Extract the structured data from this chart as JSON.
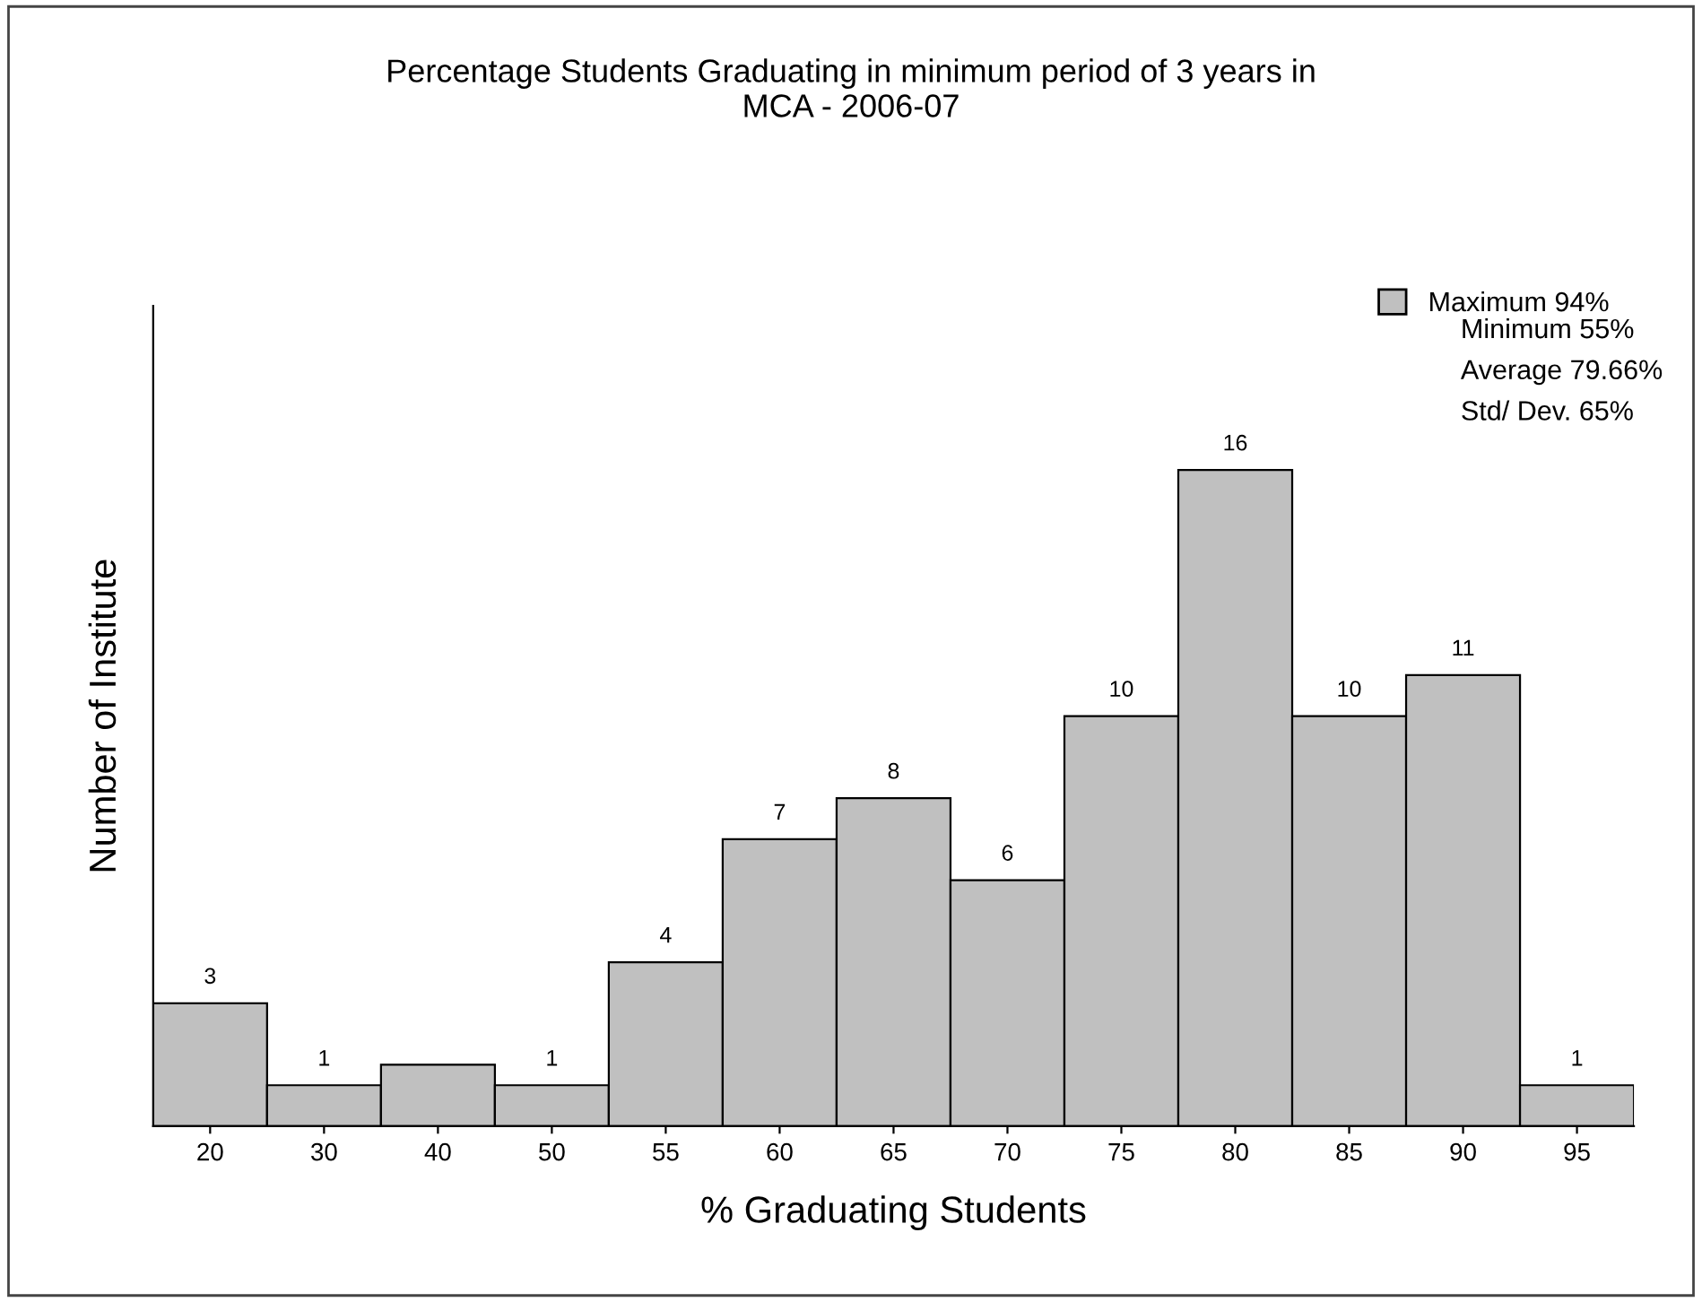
{
  "chart_data": {
    "type": "bar",
    "title": "Percentage Students Graduating in minimum period of 3 years in\nMCA - 2006-07",
    "xlabel": "% Graduating Students",
    "ylabel": "Number of Institute",
    "categories": [
      "20",
      "30",
      "40",
      "50",
      "55",
      "60",
      "65",
      "70",
      "75",
      "80",
      "85",
      "90",
      "95"
    ],
    "series": [
      {
        "name": "Maximum 94%",
        "color": "#c0c0c0",
        "values": [
          3,
          1,
          1.5,
          1,
          4,
          7,
          8,
          6,
          10,
          16,
          10,
          11,
          1
        ],
        "value_labels": [
          "3",
          "1",
          null,
          "1",
          "4",
          "7",
          "8",
          "6",
          "10",
          "16",
          "10",
          "11",
          "1"
        ]
      }
    ],
    "annotations": [
      "Minimum 55%",
      "Average 79.66%",
      "Std/ Dev. 65%"
    ],
    "legend": "top right",
    "grid": false
  }
}
